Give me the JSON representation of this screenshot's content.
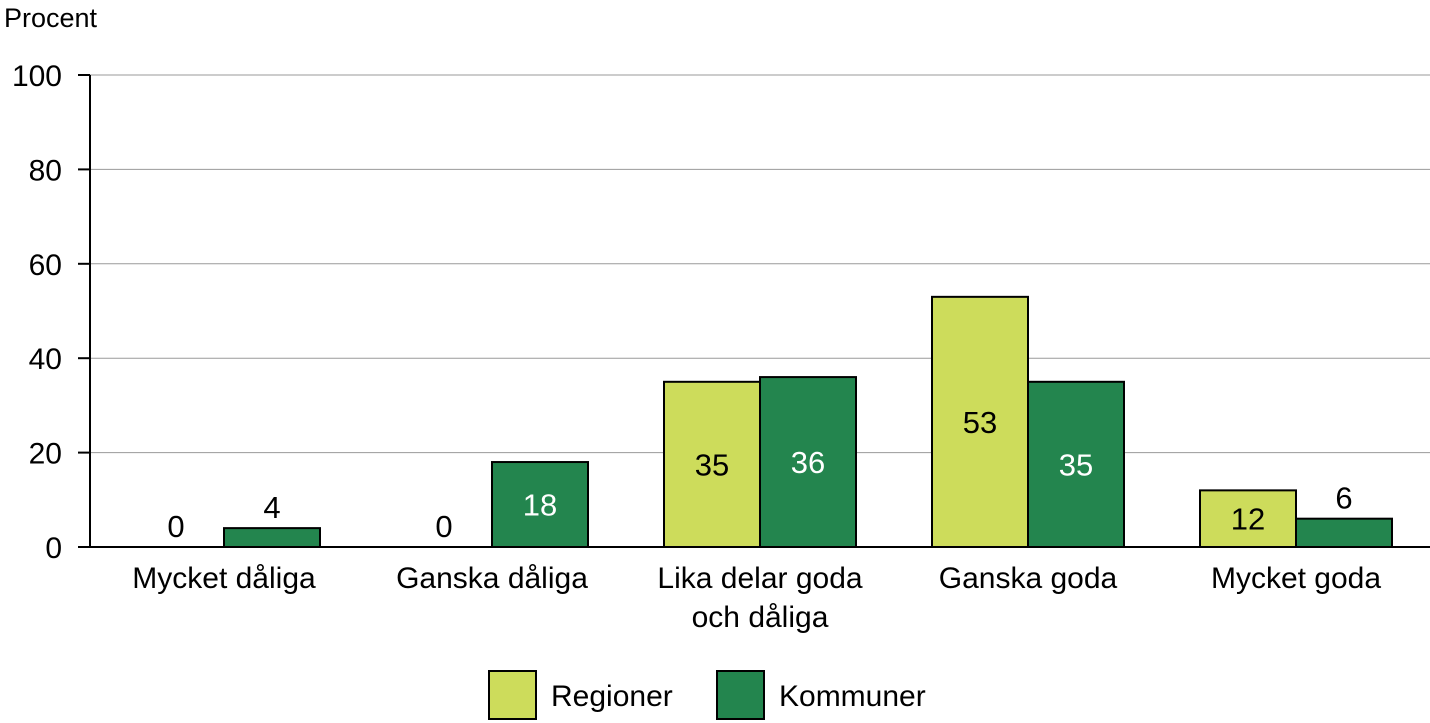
{
  "chart_data": {
    "type": "bar",
    "ylabel": "Procent",
    "ylim": [
      0,
      100
    ],
    "yticks": [
      0,
      20,
      40,
      60,
      80,
      100
    ],
    "grid": true,
    "legend_position": "bottom-center",
    "categories": [
      [
        "Mycket dåliga"
      ],
      [
        "Ganska dåliga"
      ],
      [
        "Lika delar goda",
        "och dåliga"
      ],
      [
        "Ganska goda"
      ],
      [
        "Mycket goda"
      ]
    ],
    "series": [
      {
        "name": "Regioner",
        "color": "#cddc5b",
        "label_color": "#000000",
        "values": [
          0,
          0,
          35,
          53,
          12
        ]
      },
      {
        "name": "Kommuner",
        "color": "#23854e",
        "label_color": "#ffffff",
        "values": [
          4,
          18,
          36,
          35,
          6
        ]
      }
    ]
  }
}
